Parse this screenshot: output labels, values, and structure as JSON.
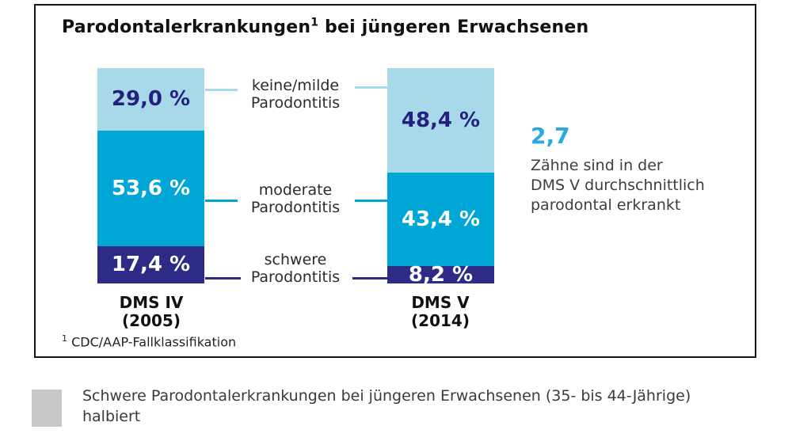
{
  "header": {
    "title_main": "Parodontalerkrankungen",
    "title_sup": "1",
    "title_rest": " bei jüngeren Erwachsenen"
  },
  "chart_data": {
    "type": "bar",
    "stacked": true,
    "unit": "%",
    "ylim": [
      0,
      100
    ],
    "title": "Parodontalerkrankungen¹ bei jüngeren Erwachsenen",
    "legend_position": "center-between-bars",
    "grid": false,
    "categories": [
      {
        "label_lines": [
          "DMS IV",
          "(2005)"
        ]
      },
      {
        "label_lines": [
          "DMS V",
          "(2014)"
        ]
      }
    ],
    "series": [
      {
        "name": "keine/milde Parodontitis",
        "color": "#a8d9e8",
        "label_color": "#232082",
        "values": [
          29.0,
          48.4
        ],
        "value_labels": [
          "29,0 %",
          "48,4 %"
        ]
      },
      {
        "name": "moderate Parodontitis",
        "color": "#00a6d6",
        "label_color": "#ffffff",
        "values": [
          53.6,
          43.4
        ],
        "value_labels": [
          "53,6 %",
          "43,4 %"
        ]
      },
      {
        "name": "schwere Parodontitis",
        "color": "#2d2b86",
        "label_color": "#ffffff",
        "values": [
          17.4,
          8.2
        ],
        "value_labels": [
          "17,4 %",
          "8,2 %"
        ]
      }
    ]
  },
  "annotation": {
    "highlight_value": "2,7",
    "highlight_color": "#29a9e1",
    "lines": [
      "Zähne sind in der",
      "DMS V durchschnittlich",
      "parodontal erkrankt"
    ]
  },
  "footnote": {
    "sup": "1",
    "text": " CDC/AAP-Fallklassifikation"
  },
  "caption": {
    "swatch_color": "#c8c8c8",
    "text": "Schwere Parodontalerkrankungen bei jüngeren Erwachsenen (35- bis 44-Jährige) halbiert"
  }
}
